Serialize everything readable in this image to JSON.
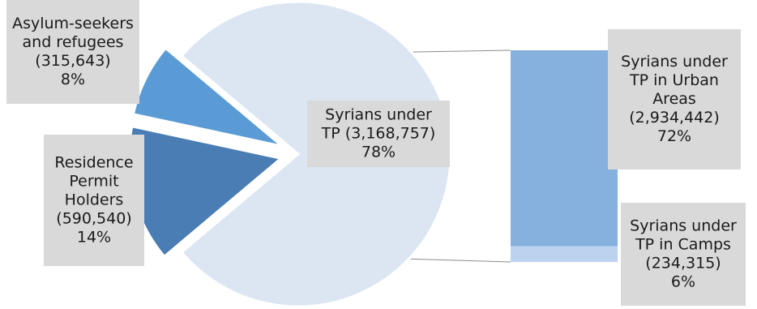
{
  "chart_data": {
    "type": "pie",
    "title": "",
    "slices": [
      {
        "label": "Asylum-seekers and refugees",
        "value": 315643,
        "percent": 8,
        "color": "#5b9bd5",
        "label_lines": [
          "Asylum-seekers",
          "and refugees",
          "(315,643)",
          "8%"
        ]
      },
      {
        "label": "Residence Permit Holders",
        "value": 590540,
        "percent": 14,
        "color": "#4a7db3",
        "label_lines": [
          "Residence",
          "Permit",
          "Holders",
          "(590,540)",
          "14%"
        ]
      },
      {
        "label": "Syrians under TP",
        "value": 3168757,
        "percent": 78,
        "color": "#dce6f3",
        "label_lines": [
          "Syrians under",
          "TP (3,168,757)",
          "78%"
        ]
      }
    ],
    "breakdown": {
      "of": "Syrians under TP",
      "segments": [
        {
          "label": "Syrians under TP in Urban Areas",
          "value": 2934442,
          "percent": 72,
          "color": "#86b0de",
          "label_lines": [
            "Syrians under",
            "TP in Urban",
            "Areas",
            "(2,934,442)",
            "72%"
          ]
        },
        {
          "label": "Syrians under TP in Camps",
          "value": 234315,
          "percent": 6,
          "color": "#bcd2ee",
          "label_lines": [
            "Syrians under",
            "TP in Camps",
            "(234,315)",
            "6%"
          ]
        }
      ]
    },
    "connector_color": "#8c8c8c",
    "label_box_color": "#d9d9d9"
  }
}
